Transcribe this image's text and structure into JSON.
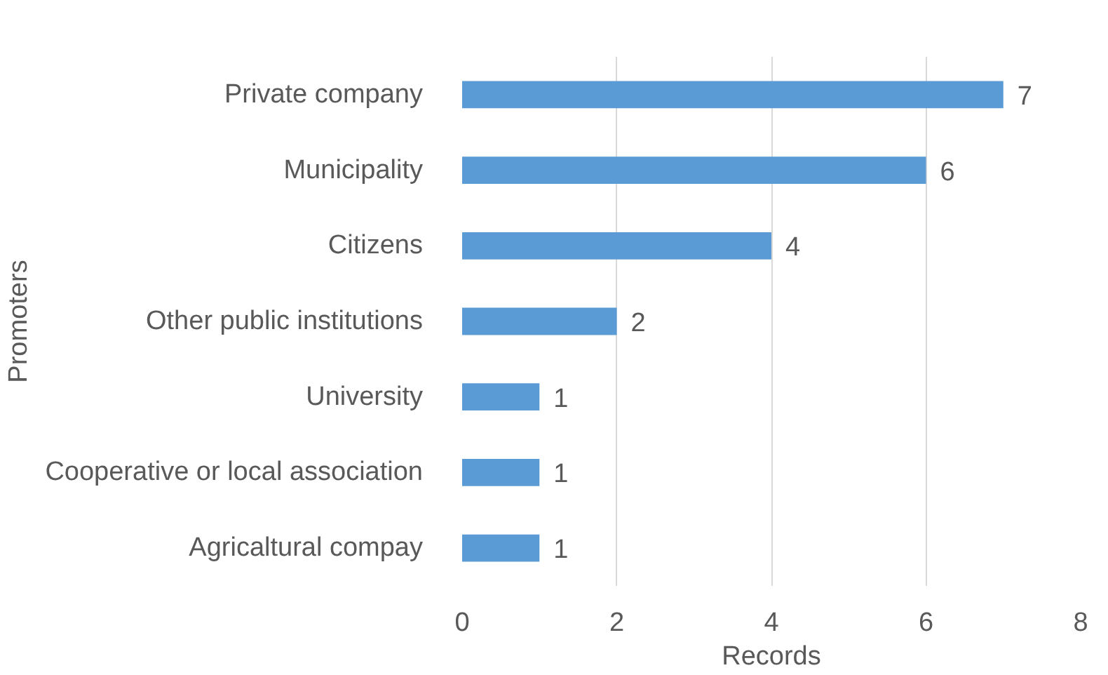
{
  "chart_data": {
    "type": "bar",
    "orientation": "horizontal",
    "xlabel": "Records",
    "ylabel": "Promoters",
    "categories": [
      "Private company",
      "Municipality",
      "Citizens",
      "Other public institutions",
      "University",
      "Cooperative or local association",
      "Agricaltural compay"
    ],
    "values": [
      7,
      6,
      4,
      2,
      1,
      1,
      1
    ],
    "color": "#5b9bd5",
    "xlim": [
      0,
      8
    ],
    "xticks": [
      0,
      2,
      4,
      6,
      8
    ],
    "grid": "x",
    "data_labels": true
  }
}
